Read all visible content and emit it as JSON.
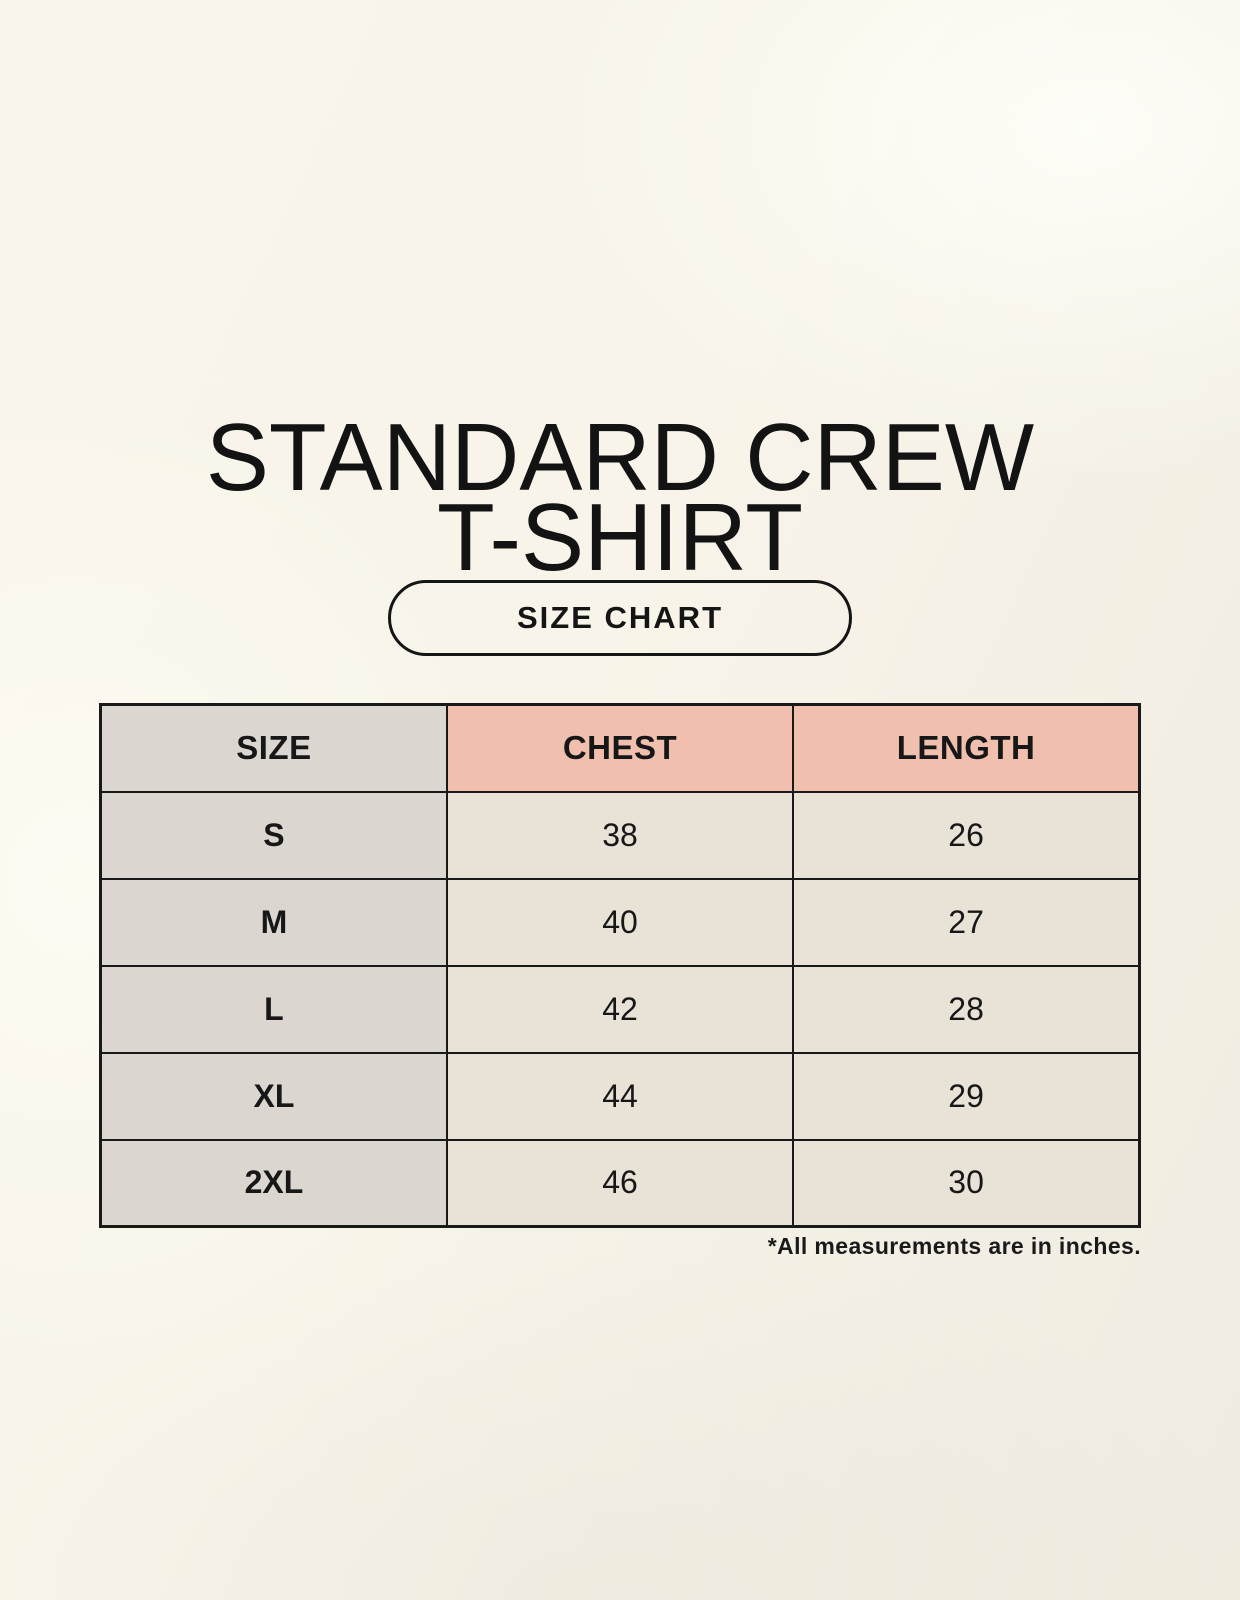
{
  "title": {
    "line1": "STANDARD CREW",
    "line2": "T-SHIRT"
  },
  "size_chart_button": {
    "label": "SIZE CHART"
  },
  "table": {
    "headers": [
      "SIZE",
      "CHEST",
      "LENGTH"
    ],
    "rows": [
      {
        "size": "S",
        "chest": "38",
        "length": "26"
      },
      {
        "size": "M",
        "chest": "40",
        "length": "27"
      },
      {
        "size": "L",
        "chest": "42",
        "length": "28"
      },
      {
        "size": "XL",
        "chest": "44",
        "length": "29"
      },
      {
        "size": "2XL",
        "chest": "46",
        "length": "30"
      }
    ]
  },
  "footnote": {
    "text": "*All measurements are in inches."
  },
  "colors": {
    "background": "#f8f4e9",
    "size_column_bg": "#dcd6d1",
    "measure_header_bg": "#f0bfae",
    "cell_bg": "#e9e2d7",
    "border": "#191919",
    "text": "#171717"
  },
  "chart_data": {
    "type": "table",
    "title": "STANDARD CREW T-SHIRT",
    "columns": [
      "SIZE",
      "CHEST",
      "LENGTH"
    ],
    "rows": [
      [
        "S",
        38,
        26
      ],
      [
        "M",
        40,
        27
      ],
      [
        "L",
        42,
        28
      ],
      [
        "XL",
        44,
        29
      ],
      [
        "2XL",
        46,
        30
      ]
    ],
    "note": "*All measurements are in inches."
  }
}
